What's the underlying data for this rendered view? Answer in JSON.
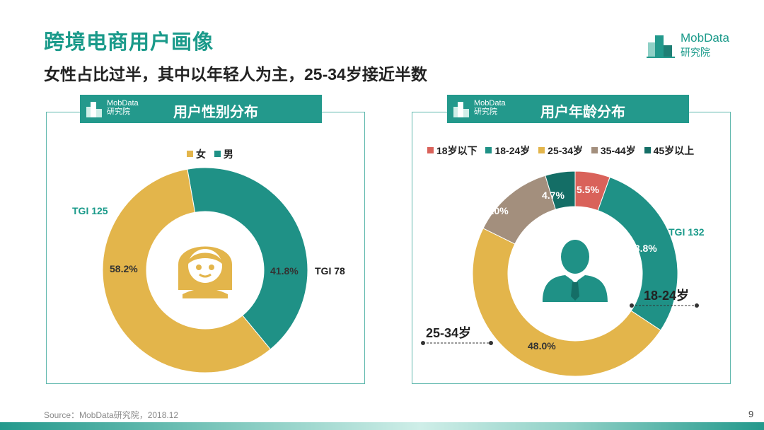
{
  "page": {
    "title": "跨境电商用户画像",
    "subtitle": "女性占比过半，其中以年轻人为主，25-34岁接近半数",
    "brand_name": "MobData",
    "brand_sub": "研究院",
    "source": "Source：MobData研究院，2018.12",
    "page_number": "9",
    "accent_color": "#23998c"
  },
  "chart_data": [
    {
      "type": "pie",
      "donut": true,
      "title": "用户性别分布",
      "categories": [
        "女",
        "男"
      ],
      "values": [
        58.2,
        41.8
      ],
      "value_labels": [
        "58.2%",
        "41.8%"
      ],
      "colors": [
        "#e3b54b",
        "#1f9186"
      ],
      "legend": [
        "女",
        "男"
      ],
      "legend_position": "top",
      "annotations": [
        "TGI 125",
        "TGI 78"
      ],
      "center_icon": "female-avatar-icon"
    },
    {
      "type": "pie",
      "donut": true,
      "title": "用户年龄分布",
      "categories": [
        "18岁以下",
        "18-24岁",
        "25-34岁",
        "35-44岁",
        "45岁以上"
      ],
      "values": [
        5.5,
        28.8,
        48.0,
        13.0,
        4.7
      ],
      "value_labels": [
        "5.5%",
        "28.8%",
        "48.0%",
        "13.0%",
        "4.7%"
      ],
      "colors": [
        "#d9625a",
        "#1f9186",
        "#e3b54b",
        "#a38f7d",
        "#146e66"
      ],
      "legend": [
        "18岁以下",
        "18-24岁",
        "25-34岁",
        "35-44岁",
        "45岁以上"
      ],
      "legend_position": "top",
      "annotations": [
        "TGI 132",
        "18-24岁",
        "25-34岁"
      ],
      "center_icon": "male-business-avatar-icon"
    }
  ]
}
